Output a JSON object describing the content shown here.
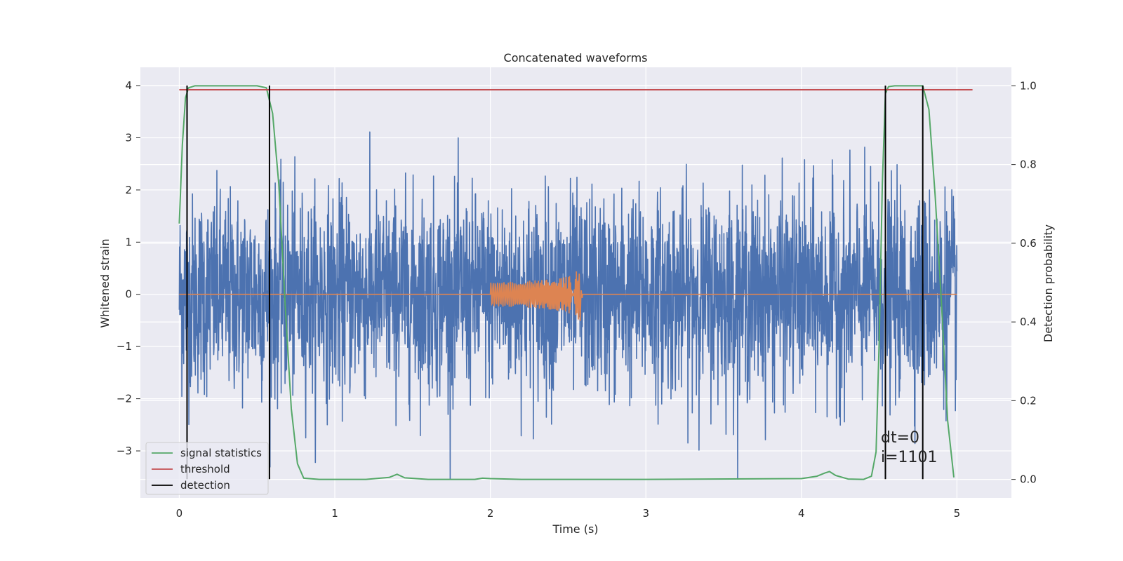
{
  "chart_data": {
    "type": "line",
    "title": "Concatenated waveforms",
    "xlabel": "Time (s)",
    "ylabel": "Whitened strain",
    "y2label": "Detection probability",
    "xlim": [
      -0.25,
      5.35
    ],
    "ylim": [
      -3.9,
      4.35
    ],
    "y2lim": [
      -0.047,
      1.047
    ],
    "xticks": [
      0,
      1,
      2,
      3,
      4,
      5
    ],
    "xtick_labels": [
      "0",
      "1",
      "2",
      "3",
      "4",
      "5"
    ],
    "yticks": [
      -3,
      -2,
      -1,
      0,
      1,
      2,
      3,
      4
    ],
    "ytick_labels": [
      "−3",
      "−2",
      "−1",
      "0",
      "1",
      "2",
      "3",
      "4"
    ],
    "y2ticks": [
      0.0,
      0.2,
      0.4,
      0.6,
      0.8,
      1.0
    ],
    "y2tick_labels": [
      "0.0",
      "0.2",
      "0.4",
      "0.6",
      "0.8",
      "1.0"
    ],
    "grid": true,
    "legend_position": "lower-left",
    "series": [
      {
        "name": "signal statistics",
        "axis": "right",
        "color": "#55a868",
        "x": [
          0.0,
          0.02,
          0.04,
          0.06,
          0.1,
          0.2,
          0.5,
          0.56,
          0.6,
          0.64,
          0.68,
          0.72,
          0.76,
          0.8,
          0.9,
          1.2,
          1.35,
          1.4,
          1.45,
          1.6,
          1.9,
          1.95,
          2.0,
          2.2,
          3.0,
          4.0,
          4.1,
          4.15,
          4.18,
          4.22,
          4.3,
          4.4,
          4.45,
          4.48,
          4.5,
          4.52,
          4.54,
          4.56,
          4.6,
          4.78,
          4.82,
          4.86,
          4.9,
          4.94,
          4.98
        ],
        "y": [
          0.65,
          0.85,
          0.97,
          0.995,
          1.0,
          1.0,
          1.0,
          0.995,
          0.93,
          0.75,
          0.45,
          0.18,
          0.04,
          0.003,
          0.0,
          0.0,
          0.005,
          0.013,
          0.004,
          0.0,
          0.0,
          0.003,
          0.002,
          0.0,
          0.0,
          0.002,
          0.008,
          0.016,
          0.02,
          0.01,
          0.001,
          0.0,
          0.008,
          0.07,
          0.35,
          0.75,
          0.98,
          0.998,
          1.0,
          1.0,
          0.94,
          0.72,
          0.45,
          0.15,
          0.005
        ]
      },
      {
        "name": "threshold",
        "axis": "right",
        "color": "#c44e52",
        "x": [
          0.0,
          5.1
        ],
        "y": [
          0.99,
          0.99
        ]
      },
      {
        "name": "detection",
        "axis": "left",
        "color": "#000000",
        "type": "vlines",
        "x": [
          0.05,
          0.58,
          4.54,
          4.78
        ],
        "ymin": -3.54,
        "ymax": 4.0
      }
    ],
    "strain_series": {
      "color": "#4c72b0",
      "x_range": [
        0.0,
        5.0
      ],
      "amplitude_typical": 1.0,
      "peak_max": 4.0,
      "peak_min": -3.54
    },
    "injected_waveform": {
      "color": "#dd8452",
      "x_range": [
        0.0,
        5.0
      ],
      "chirp_start": 2.0,
      "chirp_merger": 2.58,
      "peak_amplitude": 0.6
    },
    "annotations": [
      "dt=0",
      "i=1101"
    ]
  },
  "legend": {
    "items": [
      {
        "label": "signal statistics",
        "color": "#55a868"
      },
      {
        "label": "threshold",
        "color": "#c44e52"
      },
      {
        "label": "detection",
        "color": "#000000"
      }
    ]
  }
}
